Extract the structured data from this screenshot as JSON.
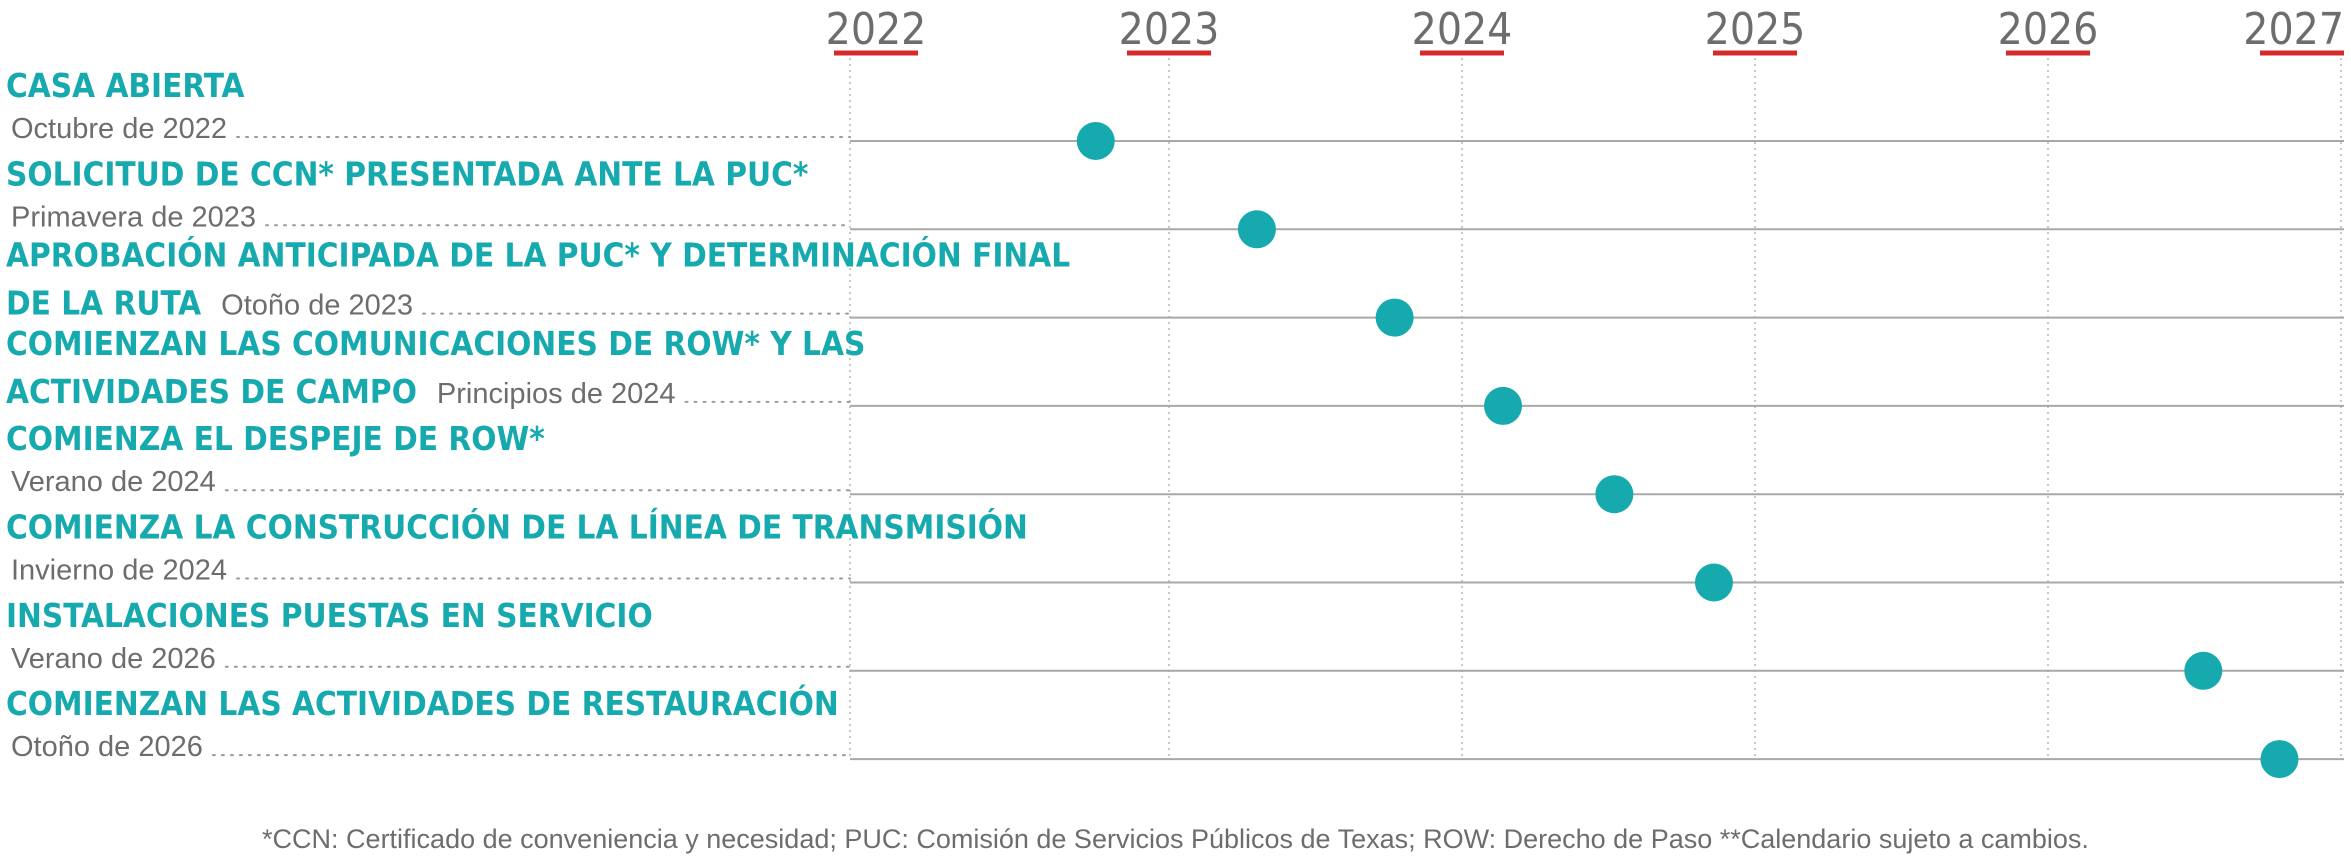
{
  "chart_data": {
    "type": "timeline",
    "x_unit": "year",
    "xlim": [
      2021.86,
      2027.0
    ],
    "years": [
      "2022",
      "2023",
      "2024",
      "2025",
      "2026",
      "2027"
    ],
    "events": [
      {
        "title": "CASA ABIERTA",
        "title_line2": "",
        "date": "Octubre de 2022",
        "x": 2022.75
      },
      {
        "title": "SOLICITUD DE CCN* PRESENTADA ANTE LA PUC*",
        "title_line2": "",
        "date": "Primavera de 2023",
        "x": 2023.3
      },
      {
        "title": "APROBACIÓN ANTICIPADA DE LA PUC* Y DETERMINACIÓN FINAL",
        "title_line2": "DE LA RUTA",
        "date": "Otoño de 2023",
        "x": 2023.77
      },
      {
        "title": "COMIENZAN LAS COMUNICACIONES DE ROW* Y LAS",
        "title_line2": "ACTIVIDADES DE CAMPO",
        "date": "Principios de 2024",
        "x": 2024.14
      },
      {
        "title": "COMIENZA EL DESPEJE DE ROW*",
        "title_line2": "",
        "date": "Verano de 2024",
        "x": 2024.52
      },
      {
        "title": "COMIENZA LA CONSTRUCCIÓN DE LA LÍNEA DE TRANSMISIÓN",
        "title_line2": "",
        "date": "Invierno de 2024",
        "x": 2024.86
      },
      {
        "title": "INSTALACIONES PUESTAS EN SERVICIO",
        "title_line2": "",
        "date": "Verano de 2026",
        "x": 2026.53
      },
      {
        "title": "COMIENZAN LAS ACTIVIDADES DE RESTAURACIÓN",
        "title_line2": "",
        "date": "Otoño de 2026",
        "x": 2026.79
      }
    ],
    "colors": {
      "accent": "#16a9ad",
      "year_text": "#6d6d6d",
      "year_underline": "#d52b2b",
      "row_line": "#a8a8a8",
      "grid": "#b5b5b5",
      "leader": "#9a9a9a",
      "date_text": "#6d6d6d"
    }
  },
  "footnote": "*CCN: Certificado de conveniencia y necesidad; PUC: Comisión de Servicios Públicos de Texas; ROW: Derecho de Paso **Calendario sujeto a cambios."
}
